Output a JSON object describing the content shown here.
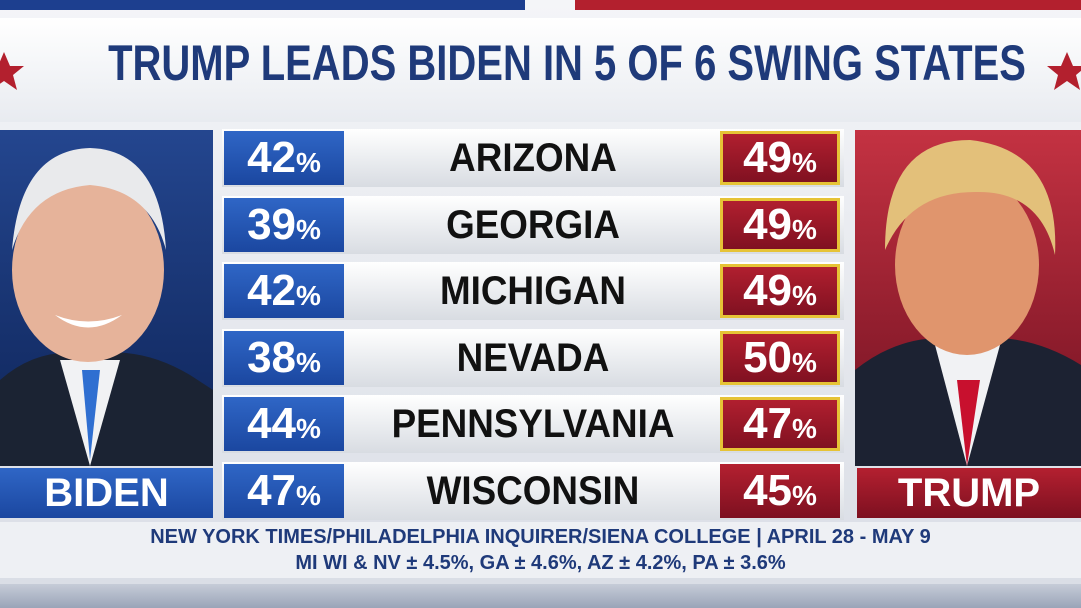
{
  "title": "TRUMP LEADS BIDEN IN 5 OF 6 SWING STATES",
  "candidates": {
    "left": "BIDEN",
    "right": "TRUMP"
  },
  "rows": [
    {
      "state": "ARIZONA",
      "biden": "42%",
      "trump": "49%"
    },
    {
      "state": "GEORGIA",
      "biden": "39%",
      "trump": "49%"
    },
    {
      "state": "MICHIGAN",
      "biden": "42%",
      "trump": "49%"
    },
    {
      "state": "NEVADA",
      "biden": "38%",
      "trump": "50%"
    },
    {
      "state": "PENNSYLVANIA",
      "biden": "44%",
      "trump": "47%"
    },
    {
      "state": "WISCONSIN",
      "biden": "47%",
      "trump": "45%"
    }
  ],
  "footer": [
    "NEW YORK TIMES/PHILADELPHIA INQUIRER/SIENA COLLEGE | APRIL 28 - MAY 9",
    "MI WI & NV ± 4.5%, GA ± 4.6%, AZ ± 4.2%, PA ± 3.6%"
  ]
}
